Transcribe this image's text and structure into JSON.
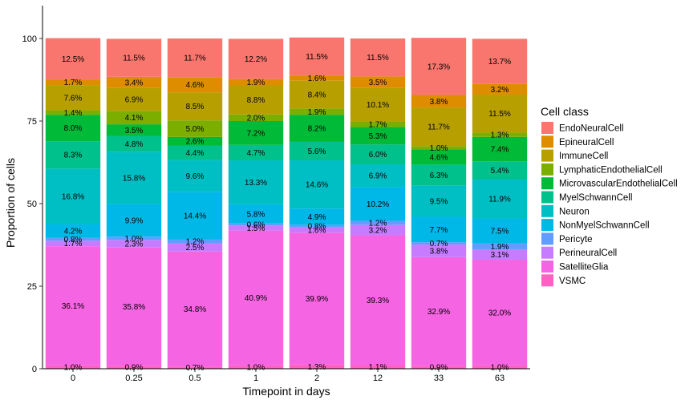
{
  "chart_data": {
    "type": "bar",
    "stacked": true,
    "xlabel": "Timepoint in days",
    "ylabel": "Proportion of cells",
    "ylim": [
      0,
      110
    ],
    "yticks": [
      0,
      25,
      50,
      75,
      100
    ],
    "categories": [
      "0",
      "0.25",
      "0.5",
      "1",
      "2",
      "12",
      "33",
      "63"
    ],
    "legend_title": "Cell class",
    "legend_position": "right",
    "grid": false,
    "series": [
      {
        "name": "VSMC",
        "color": "#FF61C3",
        "values": [
          1.0,
          0.9,
          0.7,
          1.0,
          1.3,
          1.1,
          0.9,
          1.0
        ],
        "labels": [
          "1.0%",
          "0.9%",
          "0.7%",
          "1.0%",
          "1.3%",
          "1.1%",
          "0.9%",
          "1.0%"
        ]
      },
      {
        "name": "SatelliteGlia",
        "color": "#F564E3",
        "values": [
          36.1,
          35.8,
          34.8,
          40.9,
          39.9,
          39.3,
          32.9,
          32.0
        ],
        "labels": [
          "36.1%",
          "35.8%",
          "34.8%",
          "40.9%",
          "39.9%",
          "39.3%",
          "32.9%",
          "32.0%"
        ]
      },
      {
        "name": "PerineuralCell",
        "color": "#C77CFF",
        "values": [
          1.7,
          2.3,
          2.5,
          1.5,
          1.6,
          3.2,
          3.8,
          3.1
        ],
        "labels": [
          "1.7%",
          "2.3%",
          "2.5%",
          "1.5%",
          "1.6%",
          "3.2%",
          "3.8%",
          "3.1%"
        ]
      },
      {
        "name": "Pericyte",
        "color": "#619CFF",
        "values": [
          0.8,
          1.0,
          1.2,
          0.6,
          0.8,
          1.2,
          0.7,
          1.9
        ],
        "labels": [
          "0.8%",
          "1.0%",
          "1.2%",
          "0.6%",
          "0.8%",
          "1.2%",
          "0.7%",
          "1.9%"
        ]
      },
      {
        "name": "NonMyelSchwannCell",
        "color": "#00B8E7",
        "values": [
          4.2,
          9.9,
          14.4,
          5.8,
          4.9,
          10.2,
          7.7,
          7.5
        ],
        "labels": [
          "4.2%",
          "9.9%",
          "14.4%",
          "5.8%",
          "4.9%",
          "10.2%",
          "7.7%",
          "7.5%"
        ]
      },
      {
        "name": "Neuron",
        "color": "#00BFC4",
        "values": [
          16.8,
          15.8,
          9.6,
          13.3,
          14.6,
          6.9,
          9.5,
          11.9
        ],
        "labels": [
          "16.8%",
          "15.8%",
          "9.6%",
          "13.3%",
          "14.6%",
          "6.9%",
          "9.5%",
          "11.9%"
        ]
      },
      {
        "name": "MyelSchwannCell",
        "color": "#00C08B",
        "values": [
          8.3,
          4.8,
          4.4,
          4.7,
          5.6,
          6.0,
          6.3,
          5.4
        ],
        "labels": [
          "8.3%",
          "4.8%",
          "4.4%",
          "4.7%",
          "5.6%",
          "6.0%",
          "6.3%",
          "5.4%"
        ]
      },
      {
        "name": "MicrovascularEndothelialCell",
        "color": "#00BA38",
        "values": [
          8.0,
          3.5,
          2.6,
          7.2,
          8.2,
          5.3,
          4.6,
          7.4
        ],
        "labels": [
          "8.0%",
          "3.5%",
          "2.6%",
          "7.2%",
          "8.2%",
          "5.3%",
          "4.6%",
          "7.4%"
        ]
      },
      {
        "name": "LymphaticEndothelialCell",
        "color": "#7CAE00",
        "values": [
          1.4,
          4.1,
          5.0,
          2.0,
          1.9,
          1.7,
          1.0,
          1.3
        ],
        "labels": [
          "1.4%",
          "4.1%",
          "5.0%",
          "2.0%",
          "1.9%",
          "1.7%",
          "1.0%",
          "1.3%"
        ]
      },
      {
        "name": "ImmuneCell",
        "color": "#B79F00",
        "values": [
          7.6,
          6.9,
          8.5,
          8.8,
          8.4,
          10.1,
          11.7,
          11.5
        ],
        "labels": [
          "7.6%",
          "6.9%",
          "8.5%",
          "8.8%",
          "8.4%",
          "10.1%",
          "11.7%",
          "11.5%"
        ]
      },
      {
        "name": "EpineuralCell",
        "color": "#DE8C00",
        "values": [
          1.7,
          3.4,
          4.6,
          1.9,
          1.6,
          3.5,
          3.8,
          3.2
        ],
        "labels": [
          "1.7%",
          "3.4%",
          "4.6%",
          "1.9%",
          "1.6%",
          "3.5%",
          "3.8%",
          "3.2%"
        ]
      },
      {
        "name": "EndoNeuralCell",
        "color": "#F8766D",
        "values": [
          12.5,
          11.5,
          11.7,
          12.2,
          11.5,
          11.5,
          17.3,
          13.7
        ],
        "labels": [
          "12.5%",
          "11.5%",
          "11.7%",
          "12.2%",
          "11.5%",
          "11.5%",
          "17.3%",
          "13.7%"
        ]
      }
    ],
    "legend_order": [
      "EndoNeuralCell",
      "EpineuralCell",
      "ImmuneCell",
      "LymphaticEndothelialCell",
      "MicrovascularEndothelialCell",
      "MyelSchwannCell",
      "Neuron",
      "NonMyelSchwannCell",
      "Pericyte",
      "PerineuralCell",
      "SatelliteGlia",
      "VSMC"
    ]
  }
}
